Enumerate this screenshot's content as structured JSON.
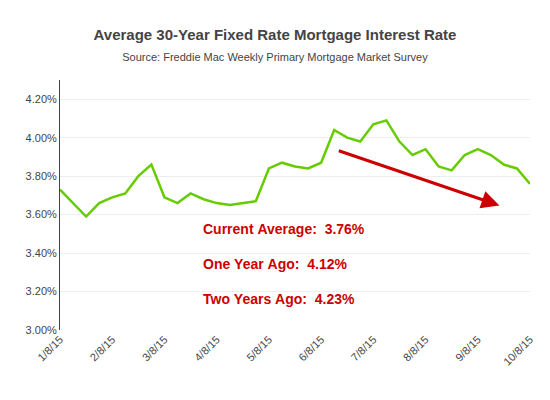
{
  "chart_data": {
    "type": "line",
    "title": "Average 30-Year Fixed Rate Mortgage Interest Rate",
    "subtitle": "Source: Freddie Mac Weekly Primary Mortgage Market Survey",
    "categories": [
      "1/8/15",
      null,
      null,
      null,
      "2/8/15",
      null,
      null,
      null,
      "3/8/15",
      null,
      null,
      null,
      "4/8/15",
      null,
      null,
      null,
      "5/8/15",
      null,
      null,
      null,
      "6/8/15",
      null,
      null,
      null,
      "7/8/15",
      null,
      null,
      null,
      "8/8/15",
      null,
      null,
      null,
      "9/8/15",
      null,
      null,
      null,
      "10/8/15"
    ],
    "values": [
      3.73,
      3.66,
      3.59,
      3.66,
      3.69,
      3.71,
      3.8,
      3.86,
      3.69,
      3.66,
      3.71,
      3.68,
      3.66,
      3.65,
      3.66,
      3.67,
      3.84,
      3.87,
      3.85,
      3.84,
      3.87,
      4.04,
      4.0,
      3.98,
      4.07,
      4.09,
      3.98,
      3.91,
      3.94,
      3.85,
      3.83,
      3.91,
      3.94,
      3.91,
      3.86,
      3.84,
      3.76
    ],
    "color": "#66cc00",
    "ylim": [
      3.0,
      4.3
    ],
    "yticks": [
      {
        "value": 3.0,
        "label": "3.00%"
      },
      {
        "value": 3.2,
        "label": "3.20%"
      },
      {
        "value": 3.4,
        "label": "3.40%"
      },
      {
        "value": 3.6,
        "label": "3.60%"
      },
      {
        "value": 3.8,
        "label": "3.80%"
      },
      {
        "value": 4.0,
        "label": "4.00%"
      },
      {
        "value": 4.2,
        "label": "4.20%"
      }
    ],
    "grid": true,
    "annotations": [
      {
        "text": "Current Average:  3.76%",
        "color": "#cc0000"
      },
      {
        "text": "One Year Ago:  4.12%",
        "color": "#cc0000"
      },
      {
        "text": "Two Years Ago:  4.23%",
        "color": "#cc0000"
      }
    ]
  }
}
